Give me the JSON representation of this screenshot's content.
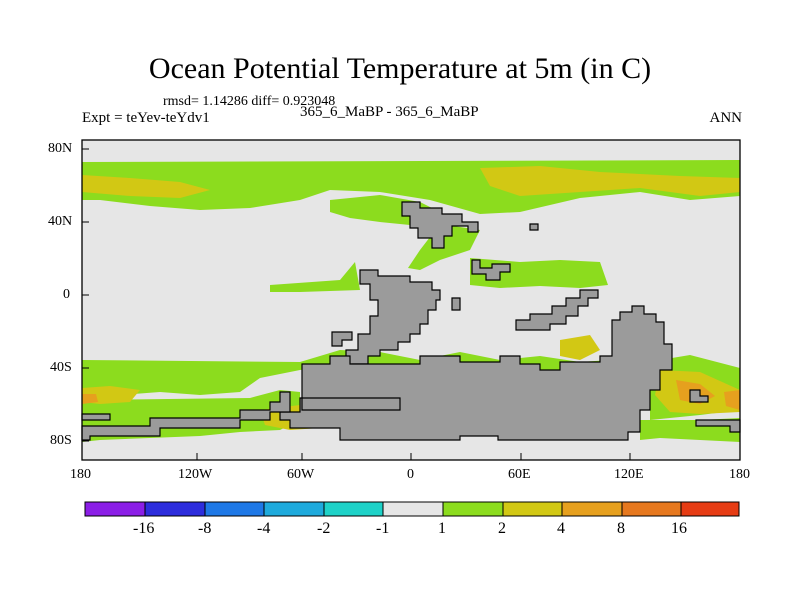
{
  "chart_data": {
    "type": "map",
    "title": "Ocean Potential Temperature at 5m (in C)",
    "stats_text": "rmsd= 1.14286  diff= 0.923048",
    "left_label": "Expt = teYev-teYdv1",
    "center_label": "365_6_MaBP - 365_6_MaBP",
    "right_label": "ANN",
    "x_ticks": [
      "180",
      "120W",
      "60W",
      "0",
      "60E",
      "120E",
      "180"
    ],
    "y_ticks": [
      "80N",
      "40N",
      "0",
      "40S",
      "80S"
    ],
    "colorbar": {
      "labels": [
        "-16",
        "-8",
        "-4",
        "-2",
        "-1",
        "1",
        "2",
        "4",
        "8",
        "16"
      ],
      "colors": [
        "#8b1ee6",
        "#2d2ddc",
        "#1e78e6",
        "#1eaadc",
        "#1ed2c8",
        "#e6e6e6",
        "#8cdc1e",
        "#d2c814",
        "#e6a01e",
        "#e6781e",
        "#e63c14"
      ]
    },
    "land_color": "#9b9b9b",
    "plot_background": "#e6e6e6"
  }
}
